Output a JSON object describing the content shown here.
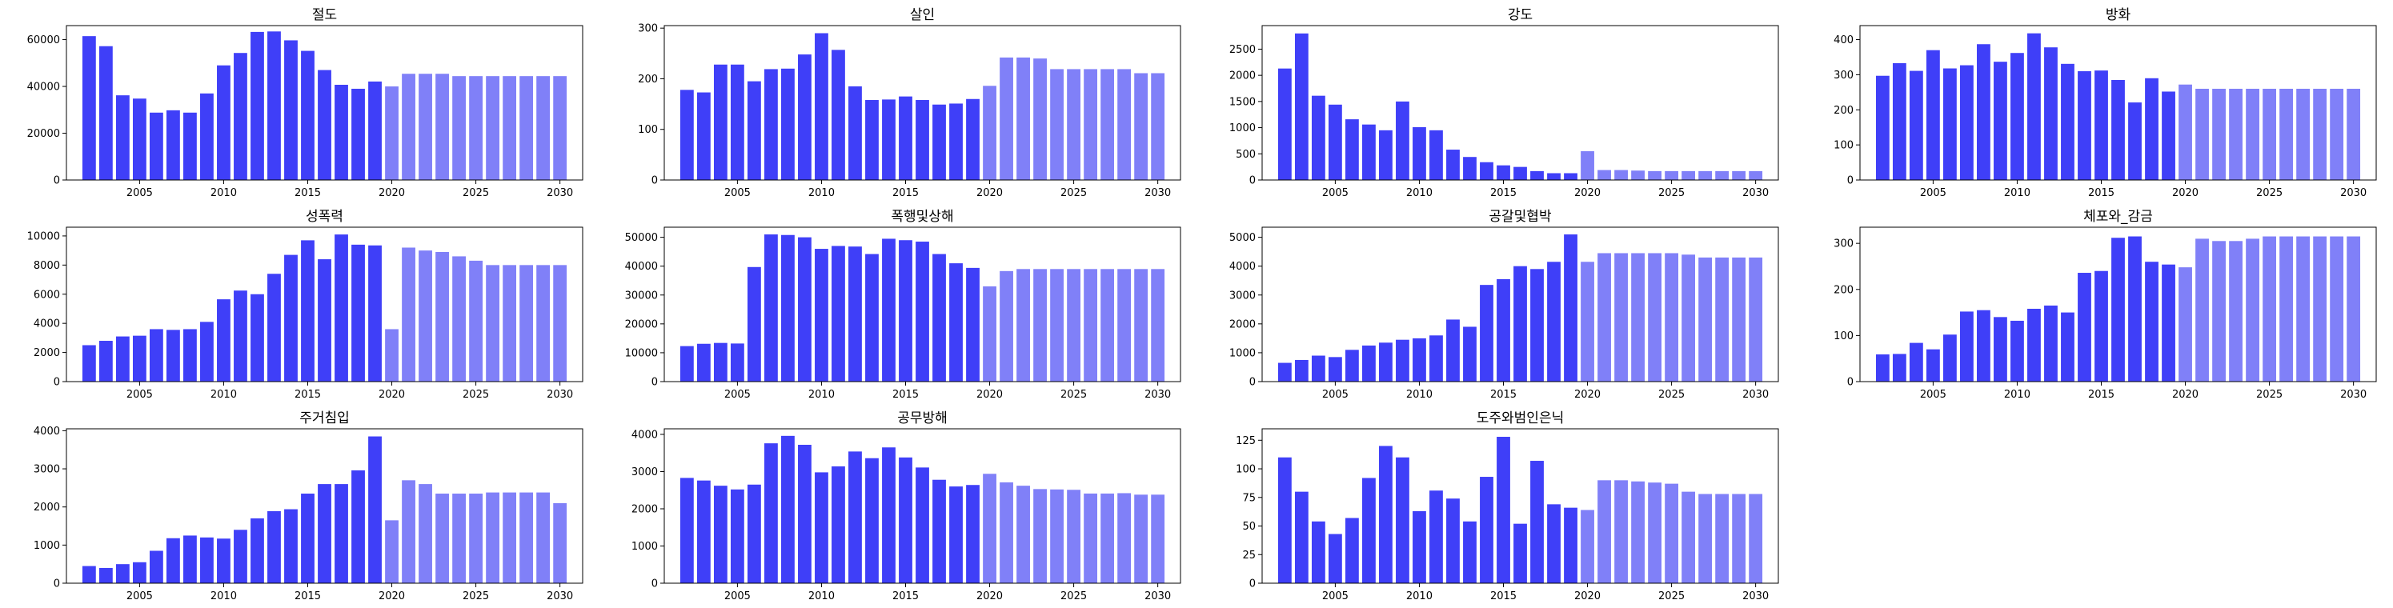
{
  "colors": {
    "actual": "#3f3ff8",
    "forecast": "#8080f8"
  },
  "chart_data": [
    {
      "type": "bar",
      "title": "절도",
      "xlabel": "",
      "ylabel": "",
      "x": [
        2002,
        2003,
        2004,
        2005,
        2006,
        2007,
        2008,
        2009,
        2010,
        2011,
        2012,
        2013,
        2014,
        2015,
        2016,
        2017,
        2018,
        2019,
        2020,
        2021,
        2022,
        2023,
        2024,
        2025,
        2026,
        2027,
        2028,
        2029,
        2030
      ],
      "values": [
        61500,
        57200,
        36200,
        34800,
        28800,
        29800,
        28800,
        37000,
        49000,
        54300,
        63300,
        63500,
        59700,
        55200,
        47000,
        40700,
        39000,
        42100,
        40000,
        45400,
        45400,
        45400,
        44400,
        44400,
        44400,
        44400,
        44400,
        44400,
        44400
      ],
      "forecast_from": 2020,
      "ylim": [
        0,
        66000
      ],
      "yticks": [
        0,
        20000,
        40000,
        60000
      ],
      "xticks": [
        2005,
        2010,
        2015,
        2020,
        2025,
        2030
      ]
    },
    {
      "type": "bar",
      "title": "살인",
      "xlabel": "",
      "ylabel": "",
      "x": [
        2002,
        2003,
        2004,
        2005,
        2006,
        2007,
        2008,
        2009,
        2010,
        2011,
        2012,
        2013,
        2014,
        2015,
        2016,
        2017,
        2018,
        2019,
        2020,
        2021,
        2022,
        2023,
        2024,
        2025,
        2026,
        2027,
        2028,
        2029,
        2030
      ],
      "values": [
        178,
        173,
        228,
        228,
        195,
        219,
        220,
        248,
        290,
        257,
        185,
        158,
        159,
        165,
        158,
        149,
        151,
        160,
        186,
        242,
        242,
        240,
        219,
        219,
        219,
        219,
        219,
        211,
        211
      ],
      "forecast_from": 2020,
      "ylim": [
        0,
        305
      ],
      "yticks": [
        0,
        100,
        200,
        300
      ],
      "xticks": [
        2005,
        2010,
        2015,
        2020,
        2025,
        2030
      ]
    },
    {
      "type": "bar",
      "title": "강도",
      "xlabel": "",
      "ylabel": "",
      "x": [
        2002,
        2003,
        2004,
        2005,
        2006,
        2007,
        2008,
        2009,
        2010,
        2011,
        2012,
        2013,
        2014,
        2015,
        2016,
        2017,
        2018,
        2019,
        2020,
        2021,
        2022,
        2023,
        2024,
        2025,
        2026,
        2027,
        2028,
        2029,
        2030
      ],
      "values": [
        2130,
        2800,
        1610,
        1440,
        1160,
        1060,
        950,
        1500,
        1010,
        950,
        580,
        440,
        340,
        280,
        250,
        170,
        130,
        130,
        550,
        190,
        190,
        180,
        170,
        170,
        170,
        170,
        170,
        170,
        170
      ],
      "forecast_from": 2020,
      "ylim": [
        0,
        2950
      ],
      "yticks": [
        0,
        500,
        1000,
        1500,
        2000,
        2500
      ],
      "xticks": [
        2005,
        2010,
        2015,
        2020,
        2025,
        2030
      ]
    },
    {
      "type": "bar",
      "title": "방화",
      "xlabel": "",
      "ylabel": "",
      "x": [
        2002,
        2003,
        2004,
        2005,
        2006,
        2007,
        2008,
        2009,
        2010,
        2011,
        2012,
        2013,
        2014,
        2015,
        2016,
        2017,
        2018,
        2019,
        2020,
        2021,
        2022,
        2023,
        2024,
        2025,
        2026,
        2027,
        2028,
        2029,
        2030
      ],
      "values": [
        297,
        333,
        311,
        370,
        318,
        327,
        387,
        337,
        362,
        418,
        378,
        331,
        310,
        312,
        285,
        221,
        290,
        252,
        272,
        260,
        260,
        260,
        260,
        260,
        260,
        260,
        260,
        260,
        260
      ],
      "forecast_from": 2020,
      "ylim": [
        0,
        440
      ],
      "yticks": [
        0,
        100,
        200,
        300,
        400
      ],
      "xticks": [
        2005,
        2010,
        2015,
        2020,
        2025,
        2030
      ]
    },
    {
      "type": "bar",
      "title": "성폭력",
      "xlabel": "",
      "ylabel": "",
      "x": [
        2002,
        2003,
        2004,
        2005,
        2006,
        2007,
        2008,
        2009,
        2010,
        2011,
        2012,
        2013,
        2014,
        2015,
        2016,
        2017,
        2018,
        2019,
        2020,
        2021,
        2022,
        2023,
        2024,
        2025,
        2026,
        2027,
        2028,
        2029,
        2030
      ],
      "values": [
        2500,
        2800,
        3100,
        3150,
        3600,
        3550,
        3600,
        4100,
        5650,
        6250,
        6000,
        7400,
        8700,
        9700,
        8400,
        10100,
        9400,
        9350,
        3600,
        9200,
        9000,
        8900,
        8600,
        8300,
        8000,
        8000,
        8000,
        8000,
        8000
      ],
      "forecast_from": 2020,
      "ylim": [
        0,
        10600
      ],
      "yticks": [
        0,
        2000,
        4000,
        6000,
        8000,
        10000
      ],
      "xticks": [
        2005,
        2010,
        2015,
        2020,
        2025,
        2030
      ]
    },
    {
      "type": "bar",
      "title": "폭행및상해",
      "xlabel": "",
      "ylabel": "",
      "x": [
        2002,
        2003,
        2004,
        2005,
        2006,
        2007,
        2008,
        2009,
        2010,
        2011,
        2012,
        2013,
        2014,
        2015,
        2016,
        2017,
        2018,
        2019,
        2020,
        2021,
        2022,
        2023,
        2024,
        2025,
        2026,
        2027,
        2028,
        2029,
        2030
      ],
      "values": [
        12300,
        13100,
        13400,
        13200,
        39700,
        51000,
        50800,
        50000,
        46000,
        47000,
        46800,
        44200,
        49500,
        49000,
        48500,
        44200,
        41000,
        39400,
        33000,
        38300,
        39000,
        39000,
        39000,
        39000,
        39000,
        39000,
        39000,
        39000,
        39000
      ],
      "forecast_from": 2020,
      "ylim": [
        0,
        53500
      ],
      "yticks": [
        0,
        10000,
        20000,
        30000,
        40000,
        50000
      ],
      "xticks": [
        2005,
        2010,
        2015,
        2020,
        2025,
        2030
      ]
    },
    {
      "type": "bar",
      "title": "공갈및협박",
      "xlabel": "",
      "ylabel": "",
      "x": [
        2002,
        2003,
        2004,
        2005,
        2006,
        2007,
        2008,
        2009,
        2010,
        2011,
        2012,
        2013,
        2014,
        2015,
        2016,
        2017,
        2018,
        2019,
        2020,
        2021,
        2022,
        2023,
        2024,
        2025,
        2026,
        2027,
        2028,
        2029,
        2030
      ],
      "values": [
        650,
        750,
        900,
        850,
        1100,
        1250,
        1350,
        1450,
        1500,
        1600,
        2150,
        1900,
        3350,
        3550,
        4000,
        3900,
        4150,
        5100,
        4150,
        4450,
        4450,
        4450,
        4450,
        4450,
        4400,
        4300,
        4300,
        4300,
        4300
      ],
      "forecast_from": 2020,
      "ylim": [
        0,
        5350
      ],
      "yticks": [
        0,
        1000,
        2000,
        3000,
        4000,
        5000
      ],
      "xticks": [
        2005,
        2010,
        2015,
        2020,
        2025,
        2030
      ]
    },
    {
      "type": "bar",
      "title": "체포와_감금",
      "xlabel": "",
      "ylabel": "",
      "x": [
        2002,
        2003,
        2004,
        2005,
        2006,
        2007,
        2008,
        2009,
        2010,
        2011,
        2012,
        2013,
        2014,
        2015,
        2016,
        2017,
        2018,
        2019,
        2020,
        2021,
        2022,
        2023,
        2024,
        2025,
        2026,
        2027,
        2028,
        2029,
        2030
      ],
      "values": [
        59,
        60,
        84,
        70,
        102,
        152,
        155,
        140,
        132,
        158,
        165,
        150,
        236,
        240,
        312,
        315,
        260,
        254,
        248,
        310,
        305,
        305,
        310,
        315,
        315,
        315,
        315,
        315,
        315
      ],
      "forecast_from": 2020,
      "ylim": [
        0,
        335
      ],
      "yticks": [
        0,
        100,
        200,
        300
      ],
      "xticks": [
        2005,
        2010,
        2015,
        2020,
        2025,
        2030
      ]
    },
    {
      "type": "bar",
      "title": "주거침입",
      "xlabel": "",
      "ylabel": "",
      "x": [
        2002,
        2003,
        2004,
        2005,
        2006,
        2007,
        2008,
        2009,
        2010,
        2011,
        2012,
        2013,
        2014,
        2015,
        2016,
        2017,
        2018,
        2019,
        2020,
        2021,
        2022,
        2023,
        2024,
        2025,
        2026,
        2027,
        2028,
        2029,
        2030
      ],
      "values": [
        450,
        400,
        500,
        550,
        850,
        1180,
        1250,
        1200,
        1170,
        1400,
        1700,
        1890,
        1940,
        2350,
        2600,
        2600,
        2960,
        3850,
        1650,
        2700,
        2600,
        2350,
        2350,
        2350,
        2380,
        2380,
        2380,
        2380,
        2100
      ],
      "forecast_from": 2020,
      "ylim": [
        0,
        4050
      ],
      "yticks": [
        0,
        1000,
        2000,
        3000,
        4000
      ],
      "xticks": [
        2005,
        2010,
        2015,
        2020,
        2025,
        2030
      ]
    },
    {
      "type": "bar",
      "title": "공무방해",
      "xlabel": "",
      "ylabel": "",
      "x": [
        2002,
        2003,
        2004,
        2005,
        2006,
        2007,
        2008,
        2009,
        2010,
        2011,
        2012,
        2013,
        2014,
        2015,
        2016,
        2017,
        2018,
        2019,
        2020,
        2021,
        2022,
        2023,
        2024,
        2025,
        2026,
        2027,
        2028,
        2029,
        2030
      ],
      "values": [
        2830,
        2760,
        2620,
        2520,
        2650,
        3760,
        3960,
        3720,
        2980,
        3140,
        3540,
        3360,
        3650,
        3380,
        3110,
        2780,
        2600,
        2640,
        2940,
        2710,
        2620,
        2530,
        2520,
        2510,
        2410,
        2410,
        2420,
        2380,
        2380
      ],
      "forecast_from": 2020,
      "ylim": [
        0,
        4150
      ],
      "yticks": [
        0,
        1000,
        2000,
        3000,
        4000
      ],
      "xticks": [
        2005,
        2010,
        2015,
        2020,
        2025,
        2030
      ]
    },
    {
      "type": "bar",
      "title": "도주와범인은닉",
      "xlabel": "",
      "ylabel": "",
      "x": [
        2002,
        2003,
        2004,
        2005,
        2006,
        2007,
        2008,
        2009,
        2010,
        2011,
        2012,
        2013,
        2014,
        2015,
        2016,
        2017,
        2018,
        2019,
        2020,
        2021,
        2022,
        2023,
        2024,
        2025,
        2026,
        2027,
        2028,
        2029,
        2030
      ],
      "values": [
        110,
        80,
        54,
        43,
        57,
        92,
        120,
        110,
        63,
        81,
        74,
        54,
        93,
        128,
        52,
        107,
        69,
        66,
        64,
        90,
        90,
        89,
        88,
        87,
        80,
        78,
        78,
        78,
        78
      ],
      "forecast_from": 2020,
      "ylim": [
        0,
        135
      ],
      "yticks": [
        0,
        25,
        50,
        75,
        100,
        125
      ],
      "xticks": [
        2005,
        2010,
        2015,
        2020,
        2025,
        2030
      ]
    }
  ]
}
